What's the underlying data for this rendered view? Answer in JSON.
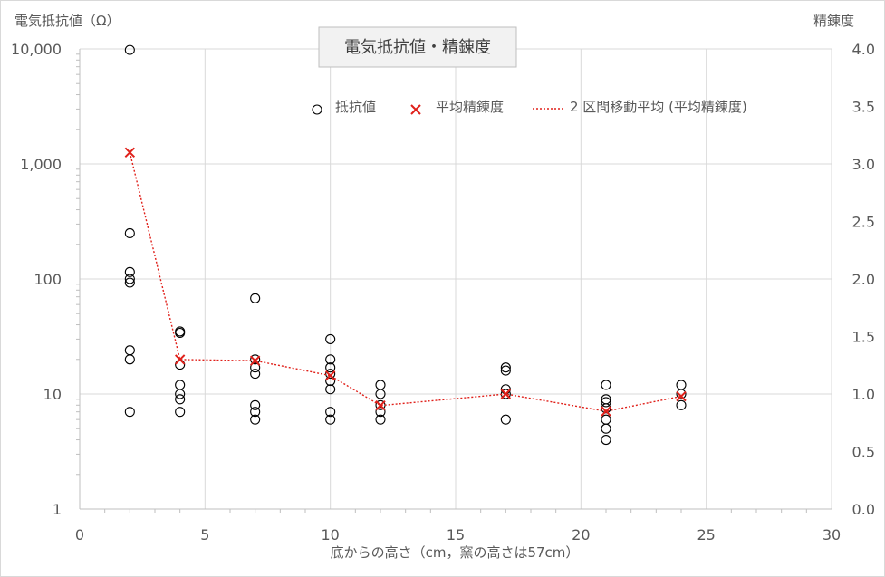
{
  "chart_data": {
    "type": "scatter",
    "title": "電気抵抗値・精錬度",
    "xlabel": "底からの高さ（cm，窯の高さは57cm）",
    "ylabel_left": "電気抵抗値（Ω）",
    "ylabel_right": "精錬度",
    "xlim": [
      0,
      30
    ],
    "x_ticks": [
      0,
      5,
      10,
      15,
      20,
      25,
      30
    ],
    "x_tick_labels": [
      "0",
      "5",
      "10",
      "15",
      "20",
      "25",
      "30"
    ],
    "ylim_left": [
      1,
      10000
    ],
    "y_left_scale": "log",
    "y_left_ticks": [
      1,
      10,
      100,
      1000,
      10000
    ],
    "y_left_tick_labels": [
      "1",
      "10",
      "100",
      "1,000",
      "10,000"
    ],
    "ylim_right": [
      0,
      4
    ],
    "y_right_ticks": [
      0,
      0.5,
      1,
      1.5,
      2,
      2.5,
      3,
      3.5,
      4
    ],
    "y_right_tick_labels": [
      "0.0",
      "0.5",
      "1.0",
      "1.5",
      "2.0",
      "2.5",
      "3.0",
      "3.5",
      "4.0"
    ],
    "grid": true,
    "legend": [
      "抵抗値",
      "平均精錬度",
      "2 区間移動平均 (平均精錬度)"
    ],
    "series": [
      {
        "name": "抵抗値",
        "marker": "circle",
        "axis": "left",
        "points": [
          [
            2,
            9800
          ],
          [
            2,
            250
          ],
          [
            2,
            115
          ],
          [
            2,
            100
          ],
          [
            2,
            93
          ],
          [
            2,
            24
          ],
          [
            2,
            20
          ],
          [
            2,
            7
          ],
          [
            4,
            35
          ],
          [
            4,
            34
          ],
          [
            4,
            18
          ],
          [
            4,
            12
          ],
          [
            4,
            10
          ],
          [
            4,
            9
          ],
          [
            4,
            7
          ],
          [
            7,
            68
          ],
          [
            7,
            20
          ],
          [
            7,
            17
          ],
          [
            7,
            15
          ],
          [
            7,
            8
          ],
          [
            7,
            7
          ],
          [
            7,
            6
          ],
          [
            10,
            30
          ],
          [
            10,
            20
          ],
          [
            10,
            17
          ],
          [
            10,
            15
          ],
          [
            10,
            13
          ],
          [
            10,
            11
          ],
          [
            10,
            7
          ],
          [
            10,
            6
          ],
          [
            12,
            12
          ],
          [
            12,
            10
          ],
          [
            12,
            8
          ],
          [
            12,
            7
          ],
          [
            12,
            6
          ],
          [
            17,
            17
          ],
          [
            17,
            16
          ],
          [
            17,
            11
          ],
          [
            17,
            10
          ],
          [
            17,
            6
          ],
          [
            21,
            12
          ],
          [
            21,
            9
          ],
          [
            21,
            8.5
          ],
          [
            21,
            7.5
          ],
          [
            21,
            6
          ],
          [
            21,
            5
          ],
          [
            21,
            4
          ],
          [
            24,
            12
          ],
          [
            24,
            10
          ],
          [
            24,
            8
          ]
        ]
      },
      {
        "name": "平均精錬度",
        "marker": "x",
        "color": "#e0201a",
        "axis": "right",
        "points": [
          [
            2,
            3.1
          ],
          [
            4,
            1.3
          ],
          [
            7,
            1.29
          ],
          [
            10,
            1.16
          ],
          [
            12,
            0.9
          ],
          [
            17,
            1.0
          ],
          [
            21,
            0.85
          ],
          [
            24,
            0.98
          ]
        ]
      },
      {
        "name": "2 区間移動平均 (平均精錬度)",
        "line": "dotted",
        "color": "#e0201a",
        "axis": "right",
        "points": [
          [
            2,
            3.1
          ],
          [
            4,
            1.3
          ],
          [
            7,
            1.29
          ],
          [
            10,
            1.16
          ],
          [
            12,
            0.9
          ],
          [
            17,
            1.0
          ],
          [
            21,
            0.85
          ],
          [
            24,
            0.98
          ]
        ]
      }
    ]
  }
}
